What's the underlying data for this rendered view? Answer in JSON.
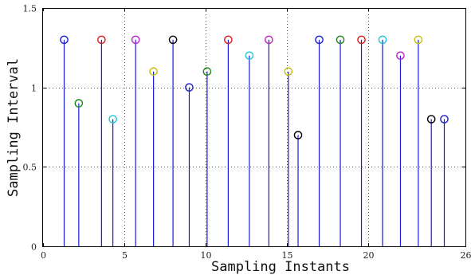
{
  "chart_data": {
    "type": "stem",
    "title": "",
    "xlabel": "Sampling Instants",
    "ylabel": "Sampling Interval",
    "xlim": [
      0,
      26
    ],
    "ylim": [
      0,
      1.5
    ],
    "x_ticks": [
      0,
      5,
      10,
      15,
      20,
      26
    ],
    "y_ticks": [
      0,
      0.5,
      1,
      1.5
    ],
    "x_tick_labels": [
      "0",
      "5",
      "10",
      "15",
      "20",
      "26"
    ],
    "y_tick_labels": [
      "0",
      "0.5",
      "1",
      "1.5"
    ],
    "grid": true,
    "stem_color": "#1a1ad6",
    "points": [
      {
        "x": 1.3,
        "y": 1.3,
        "color": "#1a1ad6"
      },
      {
        "x": 2.2,
        "y": 0.9,
        "color": "#1a8a1a"
      },
      {
        "x": 3.6,
        "y": 1.3,
        "color": "#e01818"
      },
      {
        "x": 4.3,
        "y": 0.8,
        "color": "#1ac8d8"
      },
      {
        "x": 5.7,
        "y": 1.3,
        "color": "#c020c8"
      },
      {
        "x": 6.8,
        "y": 1.1,
        "color": "#c8c010"
      },
      {
        "x": 8.0,
        "y": 1.3,
        "color": "#000000"
      },
      {
        "x": 9.0,
        "y": 1.0,
        "color": "#1a1ad6"
      },
      {
        "x": 10.1,
        "y": 1.1,
        "color": "#1a8a1a"
      },
      {
        "x": 11.4,
        "y": 1.3,
        "color": "#e01818"
      },
      {
        "x": 12.7,
        "y": 1.2,
        "color": "#1ac8d8"
      },
      {
        "x": 13.9,
        "y": 1.3,
        "color": "#c020c8"
      },
      {
        "x": 15.1,
        "y": 1.1,
        "color": "#c8c010"
      },
      {
        "x": 15.7,
        "y": 0.7,
        "color": "#000000"
      },
      {
        "x": 17.0,
        "y": 1.3,
        "color": "#1a1ad6"
      },
      {
        "x": 18.3,
        "y": 1.3,
        "color": "#1a8a1a"
      },
      {
        "x": 19.6,
        "y": 1.3,
        "color": "#e01818"
      },
      {
        "x": 20.9,
        "y": 1.3,
        "color": "#1ac8d8"
      },
      {
        "x": 22.0,
        "y": 1.2,
        "color": "#c020c8"
      },
      {
        "x": 23.1,
        "y": 1.3,
        "color": "#c8c010"
      },
      {
        "x": 23.9,
        "y": 0.8,
        "color": "#000000"
      },
      {
        "x": 24.7,
        "y": 0.8,
        "color": "#1a1ad6"
      }
    ]
  }
}
